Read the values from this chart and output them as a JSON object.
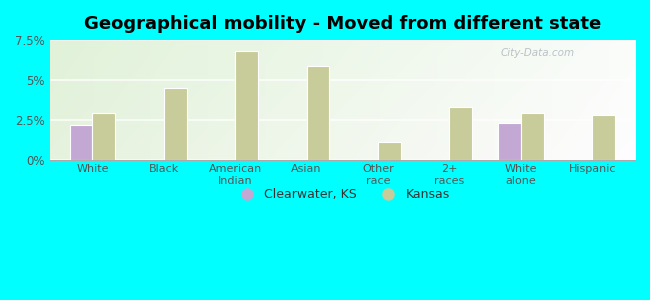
{
  "title": "Geographical mobility - Moved from different state",
  "categories": [
    "White",
    "Black",
    "American\nIndian",
    "Asian",
    "Other\nrace",
    "2+\nraces",
    "White\nalone",
    "Hispanic"
  ],
  "clearwater_values": [
    2.2,
    0,
    0,
    0,
    0,
    0,
    2.3,
    0
  ],
  "kansas_values": [
    2.9,
    4.5,
    6.8,
    5.9,
    1.1,
    3.3,
    2.9,
    2.8
  ],
  "ylim": [
    0,
    7.5
  ],
  "yticks": [
    0,
    2.5,
    5.0,
    7.5
  ],
  "ytick_labels": [
    "0%",
    "2.5%",
    "5%",
    "7.5%"
  ],
  "clearwater_color": "#c4a8d4",
  "kansas_color": "#c8cc9a",
  "background_color": "#00ffff",
  "title_fontsize": 13,
  "legend_clearwater": "Clearwater, KS",
  "legend_kansas": "Kansas",
  "bar_width": 0.32,
  "watermark": "City-Data.com"
}
